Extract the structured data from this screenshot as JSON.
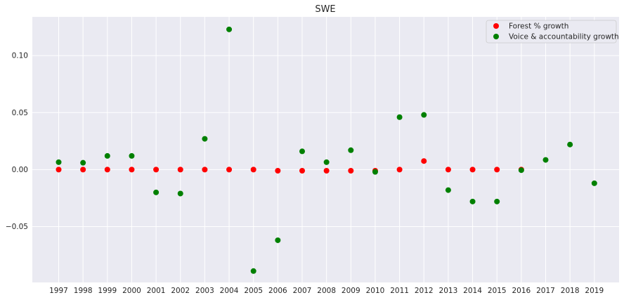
{
  "chart_data": {
    "type": "scatter",
    "title": "SWE",
    "xlabel": "",
    "ylabel": "",
    "x": [
      "1997",
      "1998",
      "1999",
      "2000",
      "2001",
      "2002",
      "2003",
      "2004",
      "2005",
      "2006",
      "2007",
      "2008",
      "2009",
      "2010",
      "2011",
      "2012",
      "2013",
      "2014",
      "2015",
      "2016",
      "2017",
      "2018",
      "2019"
    ],
    "ylim": [
      -0.099,
      0.134
    ],
    "yticks": [
      -0.05,
      0.0,
      0.05,
      0.1
    ],
    "ytick_labels": [
      "−0.05",
      "0.00",
      "0.05",
      "0.10"
    ],
    "grid": true,
    "legend_position": "top-right",
    "series": [
      {
        "name": "Forest % growth",
        "color": "#ff0000",
        "x": [
          "1997",
          "1998",
          "1999",
          "2000",
          "2001",
          "2002",
          "2003",
          "2004",
          "2005",
          "2006",
          "2007",
          "2008",
          "2009",
          "2010",
          "2011",
          "2012",
          "2013",
          "2014",
          "2015",
          "2016"
        ],
        "values": [
          0.0,
          0.0,
          0.0,
          0.0,
          0.0,
          0.0,
          0.0,
          0.0,
          0.0,
          -0.001,
          -0.001,
          -0.001,
          -0.001,
          -0.001,
          0.0,
          0.0075,
          0.0,
          0.0,
          0.0,
          0.0
        ]
      },
      {
        "name": "Voice & accountability growth",
        "color": "#008000",
        "x": [
          "1997",
          "1998",
          "1999",
          "2000",
          "2001",
          "2002",
          "2003",
          "2004",
          "2005",
          "2006",
          "2007",
          "2008",
          "2009",
          "2010",
          "2011",
          "2012",
          "2013",
          "2014",
          "2015",
          "2016",
          "2017",
          "2018",
          "2019"
        ],
        "values": [
          0.0065,
          0.006,
          0.012,
          0.012,
          -0.02,
          -0.021,
          0.027,
          0.123,
          -0.089,
          -0.062,
          0.016,
          0.0065,
          0.017,
          -0.002,
          0.046,
          0.048,
          -0.018,
          -0.028,
          -0.028,
          -0.0005,
          0.0085,
          0.022,
          -0.012
        ]
      }
    ]
  }
}
